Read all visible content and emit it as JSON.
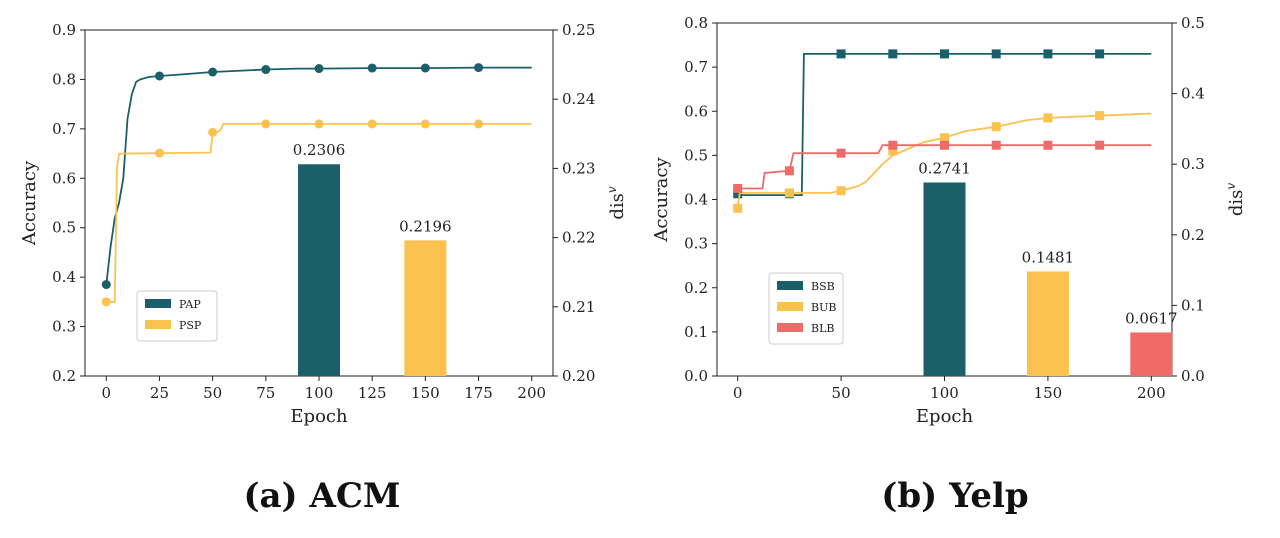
{
  "colors": {
    "teal": "#1b5f6a",
    "yellow": "#fcc250",
    "red": "#ee6b68"
  },
  "chart_data": [
    {
      "type": "line+bar",
      "caption": "(a) ACM",
      "xlabel": "Epoch",
      "ylabel": "Accuracy",
      "y2label": "dis",
      "y2label_sup": "v",
      "xticks": [
        0,
        25,
        50,
        75,
        100,
        125,
        150,
        175,
        200
      ],
      "xlim": [
        -10,
        210
      ],
      "ylim": [
        0.2,
        0.9
      ],
      "yticks": [
        "0.2",
        "0.3",
        "0.4",
        "0.5",
        "0.6",
        "0.7",
        "0.8",
        "0.9"
      ],
      "y2lim": [
        0.2,
        0.25
      ],
      "y2ticks": [
        "0.20",
        "0.21",
        "0.22",
        "0.23",
        "0.24",
        "0.25"
      ],
      "legend_position": "lower-left",
      "series": [
        {
          "name": "PAP",
          "color": "#1b5f6a",
          "marker": "circle",
          "line": [
            [
              0,
              0.385
            ],
            [
              2,
              0.46
            ],
            [
              4,
              0.52
            ],
            [
              6,
              0.55
            ],
            [
              8,
              0.6
            ],
            [
              10,
              0.72
            ],
            [
              12,
              0.77
            ],
            [
              14,
              0.795
            ],
            [
              16,
              0.8
            ],
            [
              20,
              0.805
            ],
            [
              25,
              0.807
            ],
            [
              35,
              0.81
            ],
            [
              50,
              0.815
            ],
            [
              60,
              0.817
            ],
            [
              75,
              0.82
            ],
            [
              90,
              0.822
            ],
            [
              100,
              0.822
            ],
            [
              125,
              0.823
            ],
            [
              150,
              0.823
            ],
            [
              175,
              0.824
            ],
            [
              200,
              0.824
            ]
          ],
          "markers": [
            [
              0,
              0.385
            ],
            [
              25,
              0.807
            ],
            [
              50,
              0.815
            ],
            [
              75,
              0.82
            ],
            [
              100,
              0.822
            ],
            [
              125,
              0.823
            ],
            [
              150,
              0.823
            ],
            [
              175,
              0.824
            ]
          ]
        },
        {
          "name": "PSP",
          "color": "#fcc250",
          "marker": "circle",
          "line": [
            [
              0,
              0.35
            ],
            [
              4,
              0.35
            ],
            [
              5,
              0.62
            ],
            [
              6,
              0.65
            ],
            [
              8,
              0.65
            ],
            [
              25,
              0.651
            ],
            [
              49,
              0.652
            ],
            [
              50,
              0.69
            ],
            [
              53,
              0.695
            ],
            [
              54,
              0.7
            ],
            [
              55,
              0.71
            ],
            [
              75,
              0.71
            ],
            [
              100,
              0.71
            ],
            [
              125,
              0.71
            ],
            [
              150,
              0.71
            ],
            [
              175,
              0.71
            ],
            [
              200,
              0.71
            ]
          ],
          "markers": [
            [
              0,
              0.35
            ],
            [
              25,
              0.651
            ],
            [
              50,
              0.693
            ],
            [
              75,
              0.71
            ],
            [
              100,
              0.71
            ],
            [
              125,
              0.71
            ],
            [
              150,
              0.71
            ],
            [
              175,
              0.71
            ]
          ]
        }
      ],
      "bars": [
        {
          "x": 100,
          "value": 0.2306,
          "label": "0.2306",
          "color": "#1b5f6a"
        },
        {
          "x": 150,
          "value": 0.2196,
          "label": "0.2196",
          "color": "#fcc250"
        }
      ]
    },
    {
      "type": "line+bar",
      "caption": "(b) Yelp",
      "xlabel": "Epoch",
      "ylabel": "Accuracy",
      "y2label": "dis",
      "y2label_sup": "v",
      "xticks": [
        0,
        50,
        100,
        150,
        200
      ],
      "xlim": [
        -10,
        210
      ],
      "ylim": [
        0.0,
        0.8
      ],
      "yticks": [
        "0.0",
        "0.1",
        "0.2",
        "0.3",
        "0.4",
        "0.5",
        "0.6",
        "0.7",
        "0.8"
      ],
      "y2lim": [
        0.0,
        0.5
      ],
      "y2ticks": [
        "0.0",
        "0.1",
        "0.2",
        "0.3",
        "0.4",
        "0.5"
      ],
      "legend_position": "lower-left",
      "series": [
        {
          "name": "BSB",
          "color": "#1b5f6a",
          "marker": "square",
          "line": [
            [
              0,
              0.41
            ],
            [
              30,
              0.41
            ],
            [
              31,
              0.41
            ],
            [
              32,
              0.73
            ],
            [
              50,
              0.73
            ],
            [
              100,
              0.73
            ],
            [
              150,
              0.73
            ],
            [
              200,
              0.73
            ]
          ],
          "markers": [
            [
              0,
              0.413
            ],
            [
              25,
              0.413
            ],
            [
              50,
              0.73
            ],
            [
              75,
              0.73
            ],
            [
              100,
              0.73
            ],
            [
              125,
              0.73
            ],
            [
              150,
              0.73
            ],
            [
              175,
              0.73
            ]
          ]
        },
        {
          "name": "BUB",
          "color": "#fcc250",
          "marker": "square",
          "line": [
            [
              0,
              0.38
            ],
            [
              1,
              0.415
            ],
            [
              25,
              0.415
            ],
            [
              45,
              0.415
            ],
            [
              50,
              0.42
            ],
            [
              58,
              0.43
            ],
            [
              62,
              0.44
            ],
            [
              66,
              0.46
            ],
            [
              70,
              0.48
            ],
            [
              75,
              0.5
            ],
            [
              80,
              0.51
            ],
            [
              85,
              0.52
            ],
            [
              90,
              0.53
            ],
            [
              100,
              0.54
            ],
            [
              110,
              0.555
            ],
            [
              125,
              0.565
            ],
            [
              140,
              0.58
            ],
            [
              150,
              0.585
            ],
            [
              175,
              0.59
            ],
            [
              200,
              0.595
            ]
          ],
          "markers": [
            [
              0,
              0.38
            ],
            [
              25,
              0.415
            ],
            [
              50,
              0.42
            ],
            [
              75,
              0.51
            ],
            [
              100,
              0.54
            ],
            [
              125,
              0.565
            ],
            [
              150,
              0.585
            ],
            [
              175,
              0.59
            ]
          ]
        },
        {
          "name": "BLB",
          "color": "#ee6b68",
          "marker": "square",
          "line": [
            [
              0,
              0.425
            ],
            [
              12,
              0.425
            ],
            [
              13,
              0.46
            ],
            [
              25,
              0.465
            ],
            [
              27,
              0.505
            ],
            [
              50,
              0.505
            ],
            [
              68,
              0.505
            ],
            [
              70,
              0.523
            ],
            [
              100,
              0.523
            ],
            [
              150,
              0.523
            ],
            [
              200,
              0.523
            ]
          ],
          "markers": [
            [
              0,
              0.425
            ],
            [
              25,
              0.465
            ],
            [
              50,
              0.505
            ],
            [
              75,
              0.523
            ],
            [
              100,
              0.523
            ],
            [
              125,
              0.523
            ],
            [
              150,
              0.523
            ],
            [
              175,
              0.523
            ]
          ]
        }
      ],
      "bars": [
        {
          "x": 100,
          "value": 0.2741,
          "label": "0.2741",
          "color": "#1b5f6a"
        },
        {
          "x": 150,
          "value": 0.1481,
          "label": "0.1481",
          "color": "#fcc250"
        },
        {
          "x": 200,
          "value": 0.0617,
          "label": "0.0617",
          "color": "#ee6b68"
        }
      ]
    }
  ]
}
